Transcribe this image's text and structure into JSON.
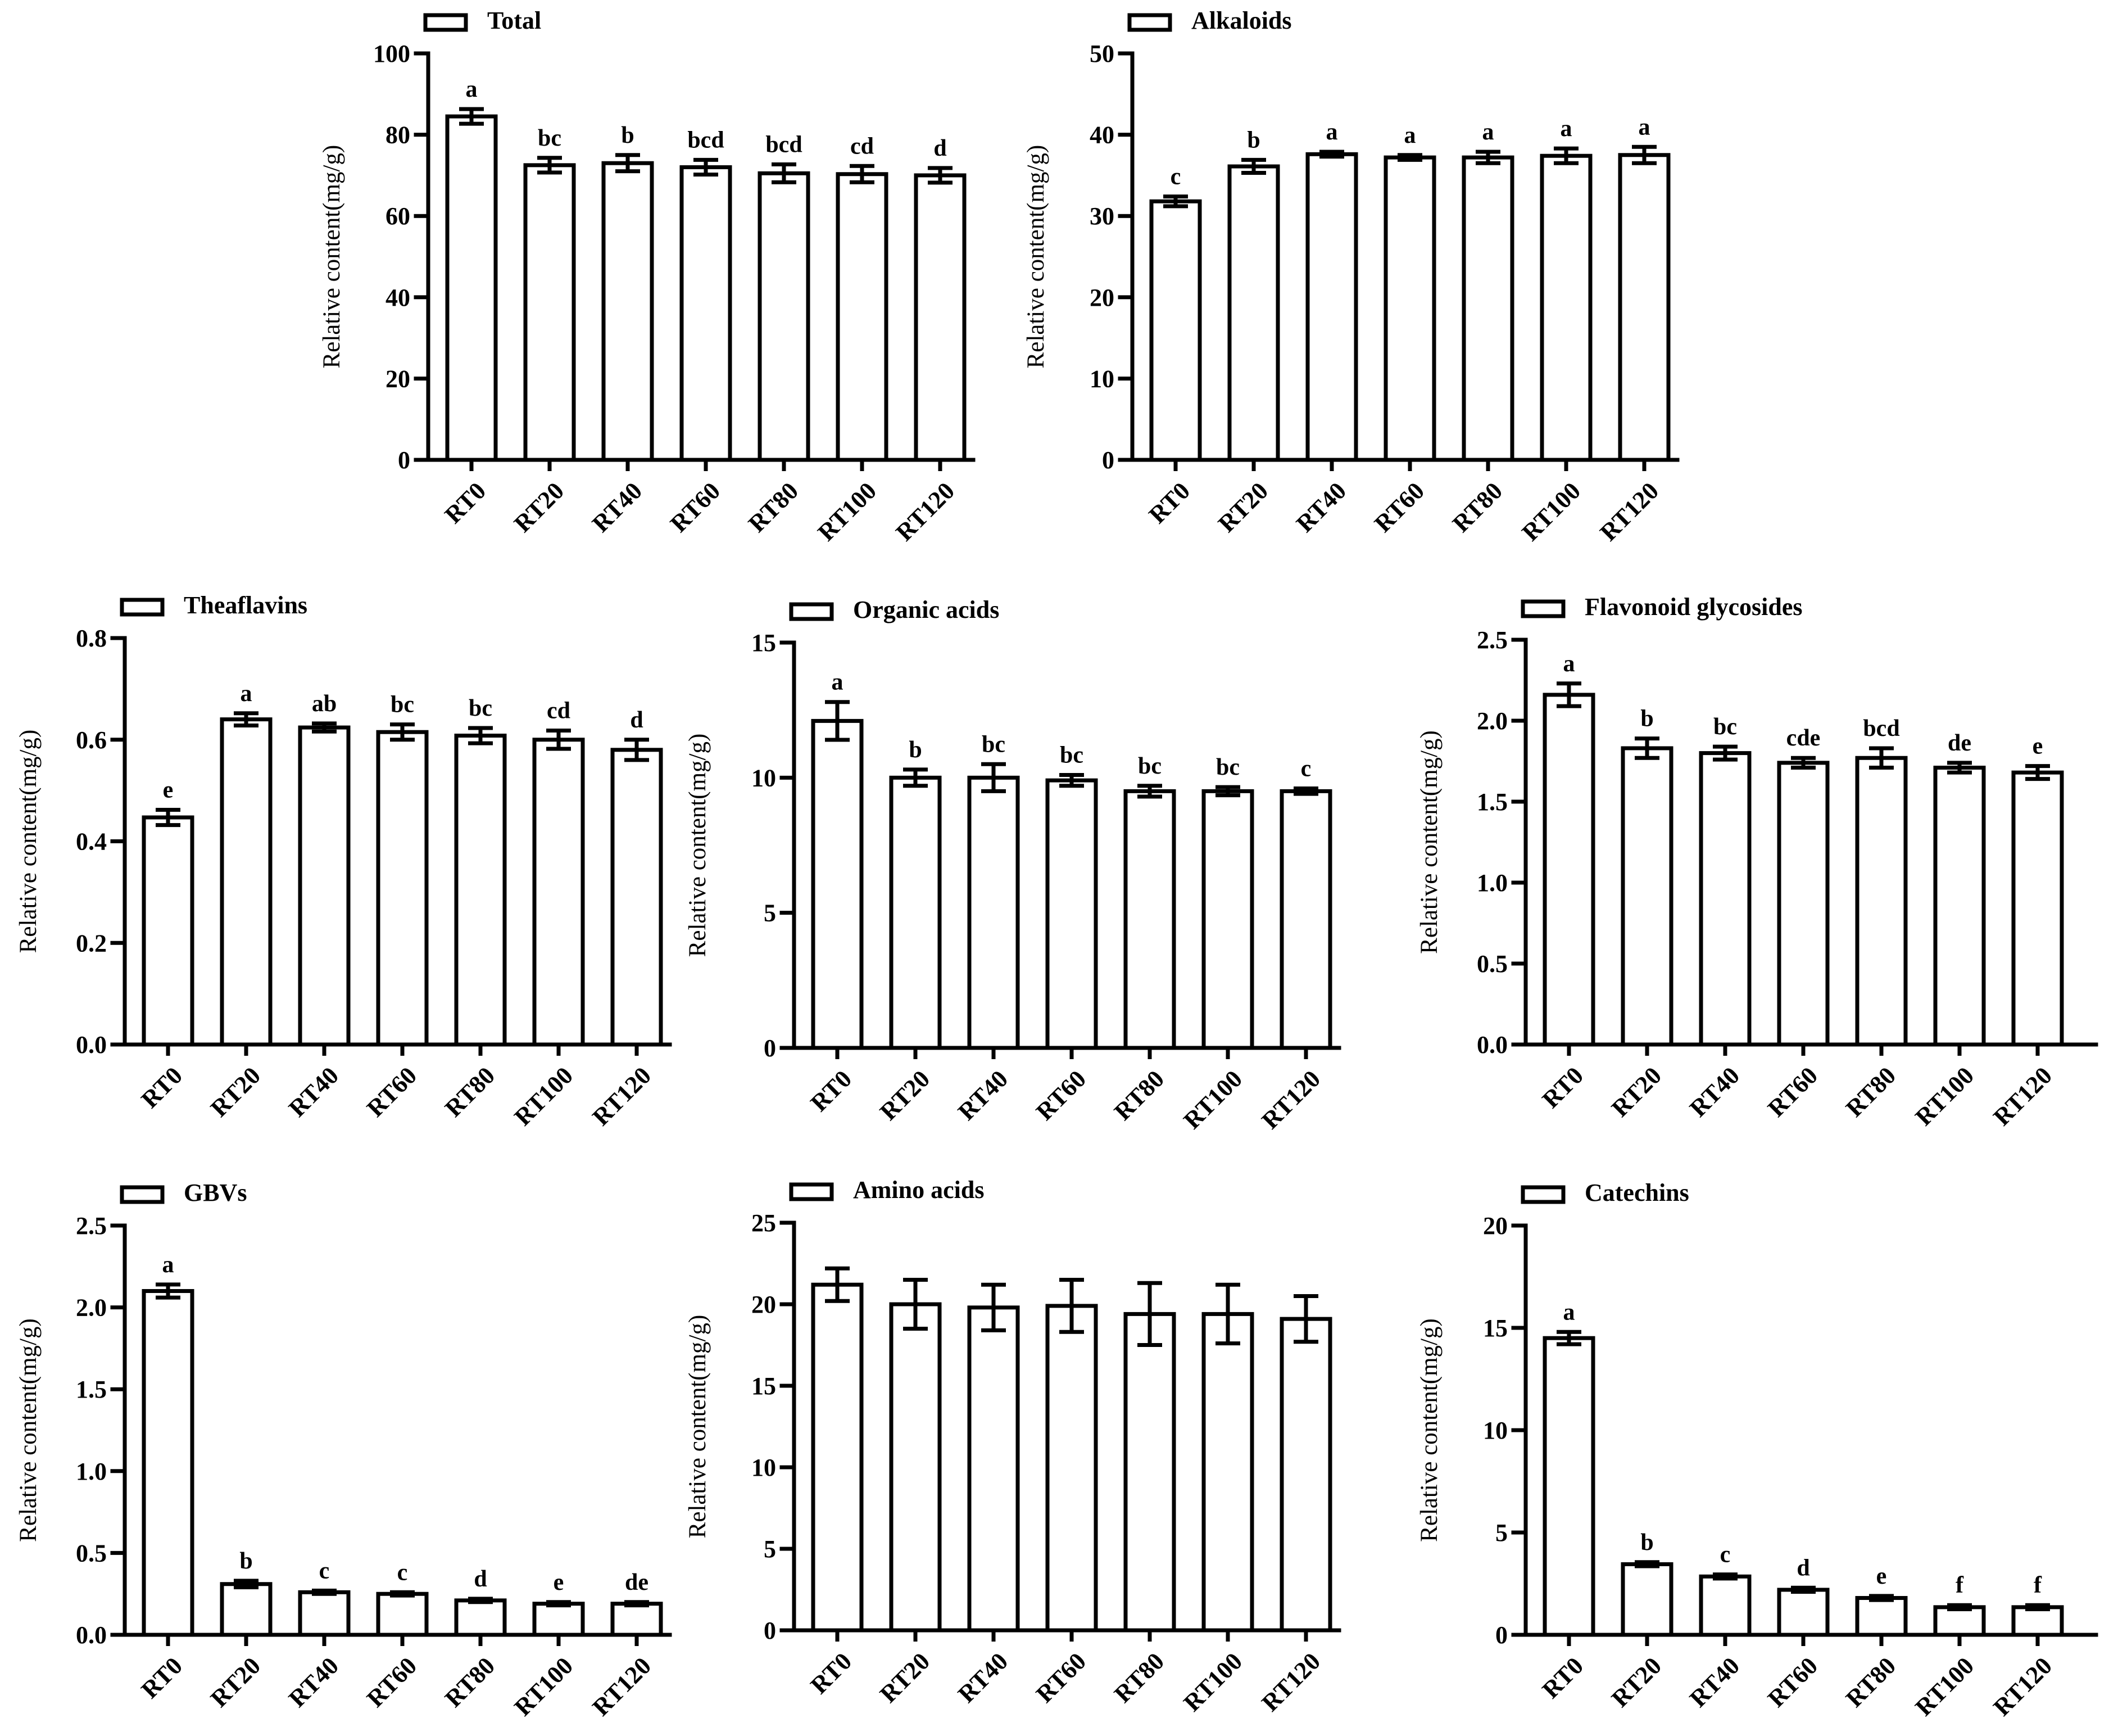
{
  "chart_data": [
    {
      "type": "bar",
      "legend": "Total",
      "ylabel": "Relative content(mg/g)",
      "categories": [
        "RT0",
        "RT20",
        "RT40",
        "RT60",
        "RT80",
        "RT100",
        "RT120"
      ],
      "values": [
        84.5,
        72.5,
        73,
        72,
        70.5,
        70.3,
        70
      ],
      "errors": [
        1.8,
        1.8,
        2,
        1.8,
        2.2,
        2,
        1.8
      ],
      "significance": [
        "a",
        "bc",
        "b",
        "bcd",
        "bcd",
        "cd",
        "d"
      ],
      "ylim": [
        0,
        100
      ],
      "yticks": [
        0,
        20,
        40,
        60,
        80,
        100
      ],
      "ytick_labels": [
        "0",
        "20",
        "40",
        "60",
        "80",
        "100"
      ]
    },
    {
      "type": "bar",
      "legend": "Alkaloids",
      "ylabel": "Relative content(mg/g)",
      "categories": [
        "RT0",
        "RT20",
        "RT40",
        "RT60",
        "RT80",
        "RT100",
        "RT120"
      ],
      "values": [
        31.8,
        36.1,
        37.6,
        37.2,
        37.2,
        37.4,
        37.5
      ],
      "errors": [
        0.6,
        0.8,
        0.3,
        0.3,
        0.7,
        0.9,
        1
      ],
      "significance": [
        "c",
        "b",
        "a",
        "a",
        "a",
        "a",
        "a"
      ],
      "ylim": [
        0,
        50
      ],
      "yticks": [
        0,
        10,
        20,
        30,
        40,
        50
      ],
      "ytick_labels": [
        "0",
        "10",
        "20",
        "30",
        "40",
        "50"
      ]
    },
    {
      "type": "bar",
      "legend": "Theaflavins",
      "ylabel": "Relative content(mg/g)",
      "categories": [
        "RT0",
        "RT20",
        "RT40",
        "RT60",
        "RT80",
        "RT100",
        "RT120"
      ],
      "values": [
        0.447,
        0.64,
        0.624,
        0.615,
        0.608,
        0.6,
        0.58
      ],
      "errors": [
        0.015,
        0.012,
        0.008,
        0.015,
        0.015,
        0.018,
        0.02
      ],
      "significance": [
        "e",
        "a",
        "ab",
        "bc",
        "bc",
        "cd",
        "d"
      ],
      "ylim": [
        0,
        0.8
      ],
      "yticks": [
        0,
        0.2,
        0.4,
        0.6,
        0.8
      ],
      "ytick_labels": [
        "0.0",
        "0.2",
        "0.4",
        "0.6",
        "0.8"
      ]
    },
    {
      "type": "bar",
      "legend": "Organic acids",
      "ylabel": "Relative content(mg/g)",
      "categories": [
        "RT0",
        "RT20",
        "RT40",
        "RT60",
        "RT80",
        "RT100",
        "RT120"
      ],
      "values": [
        12.1,
        10,
        10,
        9.9,
        9.5,
        9.5,
        9.5
      ],
      "errors": [
        0.7,
        0.3,
        0.5,
        0.2,
        0.2,
        0.15,
        0.1
      ],
      "significance": [
        "a",
        "b",
        "bc",
        "bc",
        "bc",
        "bc",
        "c"
      ],
      "ylim": [
        0,
        15
      ],
      "yticks": [
        0,
        5,
        10,
        15
      ],
      "ytick_labels": [
        "0",
        "5",
        "10",
        "15"
      ]
    },
    {
      "type": "bar",
      "legend": "Flavonoid glycosides",
      "ylabel": "Relative content(mg/g)",
      "categories": [
        "RT0",
        "RT20",
        "RT40",
        "RT60",
        "RT80",
        "RT100",
        "RT120"
      ],
      "values": [
        2.16,
        1.83,
        1.8,
        1.74,
        1.77,
        1.71,
        1.68
      ],
      "errors": [
        0.07,
        0.06,
        0.04,
        0.03,
        0.06,
        0.03,
        0.04
      ],
      "significance": [
        "a",
        "b",
        "bc",
        "cde",
        "bcd",
        "de",
        "e"
      ],
      "ylim": [
        0,
        2.5
      ],
      "yticks": [
        0,
        0.5,
        1,
        1.5,
        2,
        2.5
      ],
      "ytick_labels": [
        "0.0",
        "0.5",
        "1.0",
        "1.5",
        "2.0",
        "2.5"
      ]
    },
    {
      "type": "bar",
      "legend": "GBVs",
      "ylabel": "Relative content(mg/g)",
      "categories": [
        "RT0",
        "RT20",
        "RT40",
        "RT60",
        "RT80",
        "RT100",
        "RT120"
      ],
      "values": [
        2.1,
        0.31,
        0.26,
        0.25,
        0.21,
        0.19,
        0.19
      ],
      "errors": [
        0.04,
        0.02,
        0.01,
        0.01,
        0.01,
        0.01,
        0.01
      ],
      "significance": [
        "a",
        "b",
        "c",
        "c",
        "d",
        "e",
        "de"
      ],
      "ylim": [
        0,
        2.5
      ],
      "yticks": [
        0,
        0.5,
        1,
        1.5,
        2,
        2.5
      ],
      "ytick_labels": [
        "0.0",
        "0.5",
        "1.0",
        "1.5",
        "2.0",
        "2.5"
      ]
    },
    {
      "type": "bar",
      "legend": "Amino acids",
      "ylabel": "Relative content(mg/g)",
      "categories": [
        "RT0",
        "RT20",
        "RT40",
        "RT60",
        "RT80",
        "RT100",
        "RT120"
      ],
      "values": [
        21.2,
        20,
        19.8,
        19.9,
        19.4,
        19.4,
        19.1
      ],
      "errors": [
        1,
        1.5,
        1.4,
        1.6,
        1.9,
        1.8,
        1.4
      ],
      "significance": [
        "",
        "",
        "",
        "",
        "",
        "",
        ""
      ],
      "ylim": [
        0,
        25
      ],
      "yticks": [
        0,
        5,
        10,
        15,
        20,
        25
      ],
      "ytick_labels": [
        "0",
        "5",
        "10",
        "15",
        "20",
        "25"
      ]
    },
    {
      "type": "bar",
      "legend": "Catechins",
      "ylabel": "Relative content(mg/g)",
      "categories": [
        "RT0",
        "RT20",
        "RT40",
        "RT60",
        "RT80",
        "RT100",
        "RT120"
      ],
      "values": [
        14.5,
        3.45,
        2.85,
        2.2,
        1.8,
        1.35,
        1.35
      ],
      "errors": [
        0.3,
        0.1,
        0.1,
        0.1,
        0.1,
        0.1,
        0.1
      ],
      "significance": [
        "a",
        "b",
        "c",
        "d",
        "e",
        "f",
        "f"
      ],
      "ylim": [
        0,
        20
      ],
      "yticks": [
        0,
        5,
        10,
        15,
        20
      ],
      "ytick_labels": [
        "0",
        "5",
        "10",
        "15",
        "20"
      ]
    }
  ]
}
